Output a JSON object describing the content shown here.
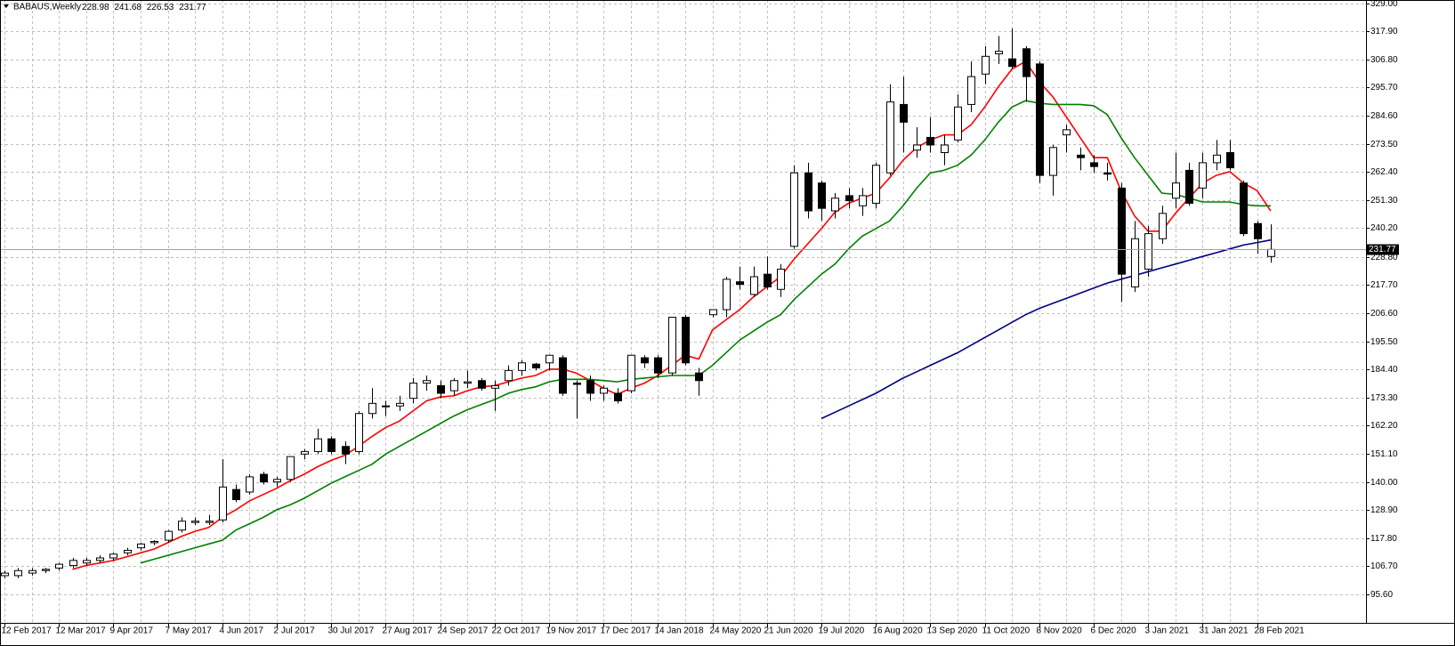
{
  "chart_data": {
    "type": "candlestick",
    "title": "BABAUS,Weekly",
    "categories": [
      "12 Feb 2017",
      null,
      null,
      null,
      "12 Mar 2017",
      null,
      null,
      null,
      "9 Apr 2017",
      null,
      null,
      null,
      "7 May 2017",
      null,
      null,
      null,
      "4 Jun 2017",
      null,
      null,
      null,
      "2 Jul 2017",
      null,
      null,
      null,
      "30 Jul 2017",
      null,
      null,
      null,
      "27 Aug 2017",
      null,
      null,
      null,
      "24 Sep 2017",
      null,
      null,
      null,
      "22 Oct 2017",
      null,
      null,
      null,
      "19 Nov 2017",
      null,
      null,
      null,
      "17 Dec 2017",
      null,
      null,
      null,
      "14 Jan 2018",
      null,
      null,
      null,
      "24 May 2020",
      null,
      null,
      null,
      "21 Jun 2020",
      null,
      null,
      null,
      "19 Jul 2020",
      null,
      null,
      null,
      "16 Aug 2020",
      null,
      null,
      null,
      "13 Sep 2020",
      null,
      null,
      null,
      "11 Oct 2020",
      null,
      null,
      null,
      "8 Nov 2020",
      null,
      null,
      null,
      "6 Dec 2020",
      null,
      null,
      null,
      "3 Jan 2021",
      null,
      null,
      null,
      "31 Jan 2021",
      null,
      null,
      null,
      "28 Feb 2021",
      null
    ],
    "open": [
      103,
      103,
      104,
      105,
      106,
      107,
      108,
      109,
      110,
      112,
      114,
      116,
      117,
      121,
      124,
      124,
      125,
      137,
      136,
      143,
      140,
      141,
      151,
      152,
      157,
      154,
      152,
      167,
      170,
      170,
      173,
      179,
      178,
      176,
      179,
      180,
      177,
      180,
      184,
      186.5,
      187,
      189,
      179,
      180,
      175,
      175,
      176,
      189,
      189,
      183,
      205,
      183,
      206,
      208,
      219,
      214,
      222,
      216,
      233,
      262,
      258,
      247,
      253,
      249,
      250,
      262,
      289,
      271,
      276,
      270,
      275,
      289,
      301,
      309,
      307,
      311,
      305,
      261,
      277,
      269,
      266,
      262,
      256,
      217,
      224,
      236,
      252,
      263,
      256,
      266,
      270,
      258,
      242,
      228.98
    ],
    "high": [
      105,
      106,
      106,
      106,
      108,
      110,
      110,
      111,
      112,
      114,
      116,
      117,
      121,
      126,
      126,
      127,
      149,
      139,
      143,
      144,
      142,
      150,
      153,
      161,
      158,
      156,
      168,
      177,
      172,
      174,
      181,
      182,
      180,
      181,
      184,
      181,
      180,
      186,
      188,
      187,
      190,
      190,
      180,
      182,
      178,
      177,
      190,
      190,
      190,
      205,
      206,
      185,
      208,
      221,
      225,
      225,
      229,
      226,
      265,
      266,
      259,
      254,
      256,
      256,
      266,
      297,
      300,
      280,
      284,
      277,
      293,
      306,
      312,
      316,
      319,
      312,
      306,
      273,
      281,
      272,
      269,
      266,
      258,
      243,
      241,
      249,
      270,
      266,
      270,
      275,
      275,
      259,
      243,
      241.68
    ],
    "low": [
      102,
      102,
      103,
      104,
      105,
      106,
      107,
      108,
      109,
      111,
      113,
      115,
      116,
      120,
      123,
      123,
      124,
      132,
      135,
      139,
      138,
      140,
      149,
      151,
      151,
      147,
      151,
      165,
      166,
      168,
      171,
      176,
      173,
      174,
      177,
      176,
      168,
      178,
      182,
      184,
      184,
      174,
      165,
      172,
      172,
      171,
      175,
      185,
      181,
      182,
      186,
      174,
      205,
      205,
      216,
      213,
      216,
      213,
      232,
      244,
      243,
      244,
      248,
      245,
      248,
      261,
      270,
      268,
      270,
      265,
      274,
      286,
      297,
      305,
      303,
      290,
      258,
      253,
      270,
      263,
      262,
      259,
      211,
      215,
      221,
      234,
      248,
      249,
      252,
      263,
      263,
      237,
      230,
      226.53
    ],
    "close": [
      104,
      105,
      105,
      105.5,
      107.5,
      109,
      109,
      110,
      111.5,
      113,
      115.5,
      116.5,
      120.5,
      124.5,
      124.5,
      124.5,
      138,
      133,
      142,
      140,
      141,
      150,
      152,
      157,
      152,
      151,
      167,
      171,
      170,
      171,
      179,
      180,
      175,
      180,
      179.5,
      177,
      178,
      184,
      187,
      185,
      190,
      175,
      178.5,
      175,
      177,
      172,
      190,
      187,
      183,
      205,
      187,
      180,
      208,
      220,
      218,
      221,
      217,
      224,
      262,
      247,
      248,
      252,
      251,
      253,
      265,
      290,
      282,
      273,
      273,
      273,
      288,
      300,
      308,
      310,
      304,
      300,
      261,
      272,
      279,
      268,
      264.5,
      261.5,
      222,
      236,
      238,
      246,
      258,
      250,
      266,
      269,
      264,
      238,
      236,
      231.77
    ],
    "bull_fill": "#ffffff",
    "bear_fill": "#000000",
    "candle_stroke": "#000000",
    "lines": [
      {
        "color": "#ff0000",
        "values": [
          null,
          null,
          null,
          null,
          null,
          105.5,
          107,
          108,
          109,
          110.5,
          112,
          113.5,
          116,
          118.5,
          120.5,
          122,
          126,
          129,
          132.5,
          135,
          137.5,
          140.5,
          143,
          146,
          148.5,
          150.5,
          154,
          158,
          161.5,
          164,
          168,
          172,
          173.5,
          174,
          176,
          177.5,
          178,
          179.5,
          181,
          182,
          184.5,
          184.5,
          183,
          180,
          177,
          174.5,
          177,
          179,
          182,
          186,
          190,
          188.5,
          200,
          204,
          208,
          213,
          217,
          221,
          228,
          234,
          240,
          246.5,
          250,
          252,
          254,
          260,
          267,
          272,
          275,
          277,
          277,
          281,
          288,
          296,
          303,
          306,
          298,
          292,
          284,
          276,
          268,
          268,
          255,
          245,
          239,
          239,
          246,
          252,
          258,
          261,
          262.5,
          258,
          255,
          247
        ]
      },
      {
        "color": "#008000",
        "values": [
          null,
          null,
          null,
          null,
          null,
          null,
          null,
          null,
          null,
          null,
          108,
          109.5,
          111,
          112.5,
          114,
          115.5,
          117,
          121,
          123.5,
          126,
          129,
          131,
          133.5,
          136.5,
          139.5,
          142,
          144.5,
          147,
          151,
          154,
          157,
          160,
          163,
          166,
          168.5,
          170.5,
          172.5,
          175,
          176.5,
          177.5,
          179.5,
          180.5,
          180.5,
          180.5,
          180,
          179.5,
          180.5,
          181,
          181.5,
          182,
          182,
          182,
          186,
          191,
          196,
          199.5,
          203,
          206,
          212,
          217,
          222,
          226,
          232,
          237,
          240,
          243,
          249,
          256,
          262,
          263,
          265,
          269,
          275,
          282,
          288,
          290.5,
          289.5,
          289,
          289,
          289,
          288.5,
          285,
          276,
          268,
          261,
          254,
          253.5,
          252,
          250.5,
          250.5,
          250.5,
          249.5,
          249,
          249
        ]
      },
      {
        "color": "#000080",
        "values": [
          null,
          null,
          null,
          null,
          null,
          null,
          null,
          null,
          null,
          null,
          null,
          null,
          null,
          null,
          null,
          null,
          null,
          null,
          null,
          null,
          null,
          null,
          null,
          null,
          null,
          null,
          null,
          null,
          null,
          null,
          null,
          null,
          null,
          null,
          null,
          null,
          null,
          null,
          null,
          null,
          null,
          null,
          null,
          null,
          null,
          null,
          null,
          null,
          null,
          null,
          null,
          null,
          null,
          null,
          null,
          null,
          null,
          null,
          null,
          null,
          165,
          167.5,
          170,
          172.5,
          175,
          178,
          181,
          183.5,
          186,
          188.5,
          191,
          194,
          197,
          200,
          203,
          206,
          208.5,
          210.5,
          212.5,
          214.5,
          216.5,
          218.5,
          220,
          221.5,
          223,
          224.5,
          226,
          227.5,
          229,
          230.5,
          232,
          233.5,
          234.5,
          235.5
        ]
      }
    ],
    "ylim": [
      84.36,
      330.24
    ],
    "yticks": [
      {
        "value": 95.6,
        "label": "95.60"
      },
      {
        "value": 106.7,
        "label": "106.70"
      },
      {
        "value": 117.8,
        "label": "117.80"
      },
      {
        "value": 128.9,
        "label": "128.90"
      },
      {
        "value": 140,
        "label": "140.00"
      },
      {
        "value": 151.1,
        "label": "151.10"
      },
      {
        "value": 162.2,
        "label": "162.20"
      },
      {
        "value": 173.3,
        "label": "173.30"
      },
      {
        "value": 184.4,
        "label": "184.40"
      },
      {
        "value": 195.5,
        "label": "195.50"
      },
      {
        "value": 206.6,
        "label": "206.60"
      },
      {
        "value": 217.7,
        "label": "217.70"
      },
      {
        "value": 228.8,
        "label": "228.80"
      },
      {
        "value": 240.2,
        "label": "240.20"
      },
      {
        "value": 251.3,
        "label": "251.30"
      },
      {
        "value": 262.4,
        "label": "262.40"
      },
      {
        "value": 273.5,
        "label": "273.50"
      },
      {
        "value": 284.6,
        "label": "284.60"
      },
      {
        "value": 295.7,
        "label": "295.70"
      },
      {
        "value": 306.8,
        "label": "306.80"
      },
      {
        "value": 317.9,
        "label": "317.90"
      },
      {
        "value": 329,
        "label": "329.00"
      }
    ],
    "grid": true
  }
}
